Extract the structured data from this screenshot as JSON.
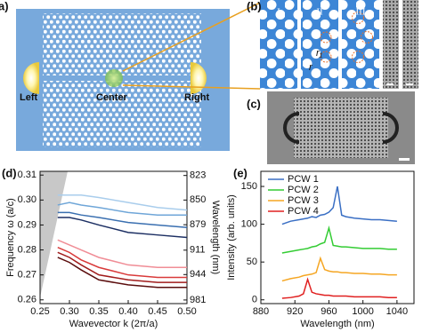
{
  "panels": {
    "a": {
      "label": "a)",
      "sites": [
        "Left",
        "Center",
        "Right"
      ]
    },
    "b": {
      "label": "(b)",
      "strips": [
        "I",
        "II",
        "III"
      ],
      "symbols": [
        "r₁",
        "r"
      ]
    },
    "c": {
      "label": "(c)"
    },
    "d": {
      "label": "(d)"
    },
    "e": {
      "label": "(e)"
    }
  },
  "chart_data": [
    {
      "type": "line",
      "xlabel": "Wavevector k (2π/a)",
      "ylabel": "Frequency ω (a/c)",
      "y2label": "Wavelength (nm)",
      "xlim": [
        0.25,
        0.5
      ],
      "xticks": [
        0.25,
        {
          "value": 0.3,
          "label": "0.30"
        },
        0.35,
        {
          "value": 0.4,
          "label": "0.40"
        },
        0.45,
        {
          "value": 0.5,
          "label": "0.50"
        }
      ],
      "ylim": [
        0.2585,
        0.3115
      ],
      "yticks": [
        0.31,
        {
          "value": 0.3,
          "label": "0.30"
        },
        0.29,
        0.28,
        0.27,
        0.26
      ],
      "y2lim": [
        986.5,
        818.6
      ],
      "y2scale": "reciprocal",
      "y2ticks": [
        823,
        850,
        879,
        911,
        944,
        981
      ],
      "x": [
        0.28,
        0.3,
        0.32,
        0.35,
        0.4,
        0.45,
        0.5
      ],
      "series": [
        {
          "color": "#a9cdec",
          "values": [
            0.302,
            0.302,
            0.302,
            0.301,
            0.299,
            0.297,
            0.296
          ]
        },
        {
          "color": "#6fa6d8",
          "values": [
            0.298,
            0.299,
            0.298,
            0.297,
            0.295,
            0.294,
            0.294
          ]
        },
        {
          "color": "#3a6fb0",
          "values": [
            0.295,
            0.295,
            0.294,
            0.293,
            0.291,
            0.29,
            0.289
          ]
        },
        {
          "color": "#1c2f63",
          "values": [
            0.293,
            0.293,
            0.292,
            0.29,
            0.287,
            0.286,
            0.285
          ]
        },
        {
          "color": "#f08d96",
          "values": [
            0.284,
            0.282,
            0.28,
            0.277,
            0.274,
            0.273,
            0.273
          ]
        },
        {
          "color": "#d93a3a",
          "values": [
            0.281,
            0.279,
            0.276,
            0.273,
            0.27,
            0.269,
            0.269
          ]
        },
        {
          "color": "#a11c1c",
          "values": [
            0.279,
            0.277,
            0.274,
            0.27,
            0.268,
            0.267,
            0.267
          ]
        },
        {
          "color": "#5a0c0c",
          "values": [
            0.277,
            0.275,
            0.272,
            0.268,
            0.266,
            0.265,
            0.265
          ]
        }
      ]
    },
    {
      "type": "line",
      "xlabel": "Wavelength (nm)",
      "ylabel": "Intensity (arb. units)",
      "legend": "upper-left",
      "xlim": [
        880,
        1060
      ],
      "xticks": [
        880,
        920,
        960,
        1000,
        1040
      ],
      "ylim": [
        -5,
        170
      ],
      "yticks": [
        0,
        50,
        100,
        150
      ],
      "x": [
        905,
        915,
        925,
        930,
        935,
        940,
        945,
        950,
        955,
        960,
        965,
        970,
        975,
        980,
        990,
        1000,
        1010,
        1020,
        1030,
        1040
      ],
      "series": [
        {
          "name": "PCW 1",
          "color": "#3a6fc4",
          "values": [
            100,
            104,
            106,
            107,
            108,
            110,
            109,
            112,
            113,
            116,
            122,
            150,
            112,
            110,
            108,
            107,
            106,
            106,
            105,
            104
          ]
        },
        {
          "name": "PCW 2",
          "color": "#33cc33",
          "values": [
            62,
            64,
            66,
            67,
            68,
            70,
            71,
            74,
            76,
            95,
            72,
            71,
            70,
            70,
            69,
            68,
            68,
            68,
            67,
            67
          ]
        },
        {
          "name": "PCW 3",
          "color": "#f5a623",
          "values": [
            25,
            28,
            30,
            32,
            33,
            34,
            36,
            55,
            40,
            38,
            37,
            37,
            36,
            36,
            35,
            35,
            34,
            34,
            33,
            33
          ]
        },
        {
          "name": "PCW 4",
          "color": "#e02020",
          "values": [
            2,
            3,
            5,
            8,
            27,
            10,
            8,
            7,
            6,
            6,
            5,
            5,
            5,
            5,
            4,
            4,
            4,
            4,
            3,
            3
          ]
        }
      ]
    }
  ]
}
